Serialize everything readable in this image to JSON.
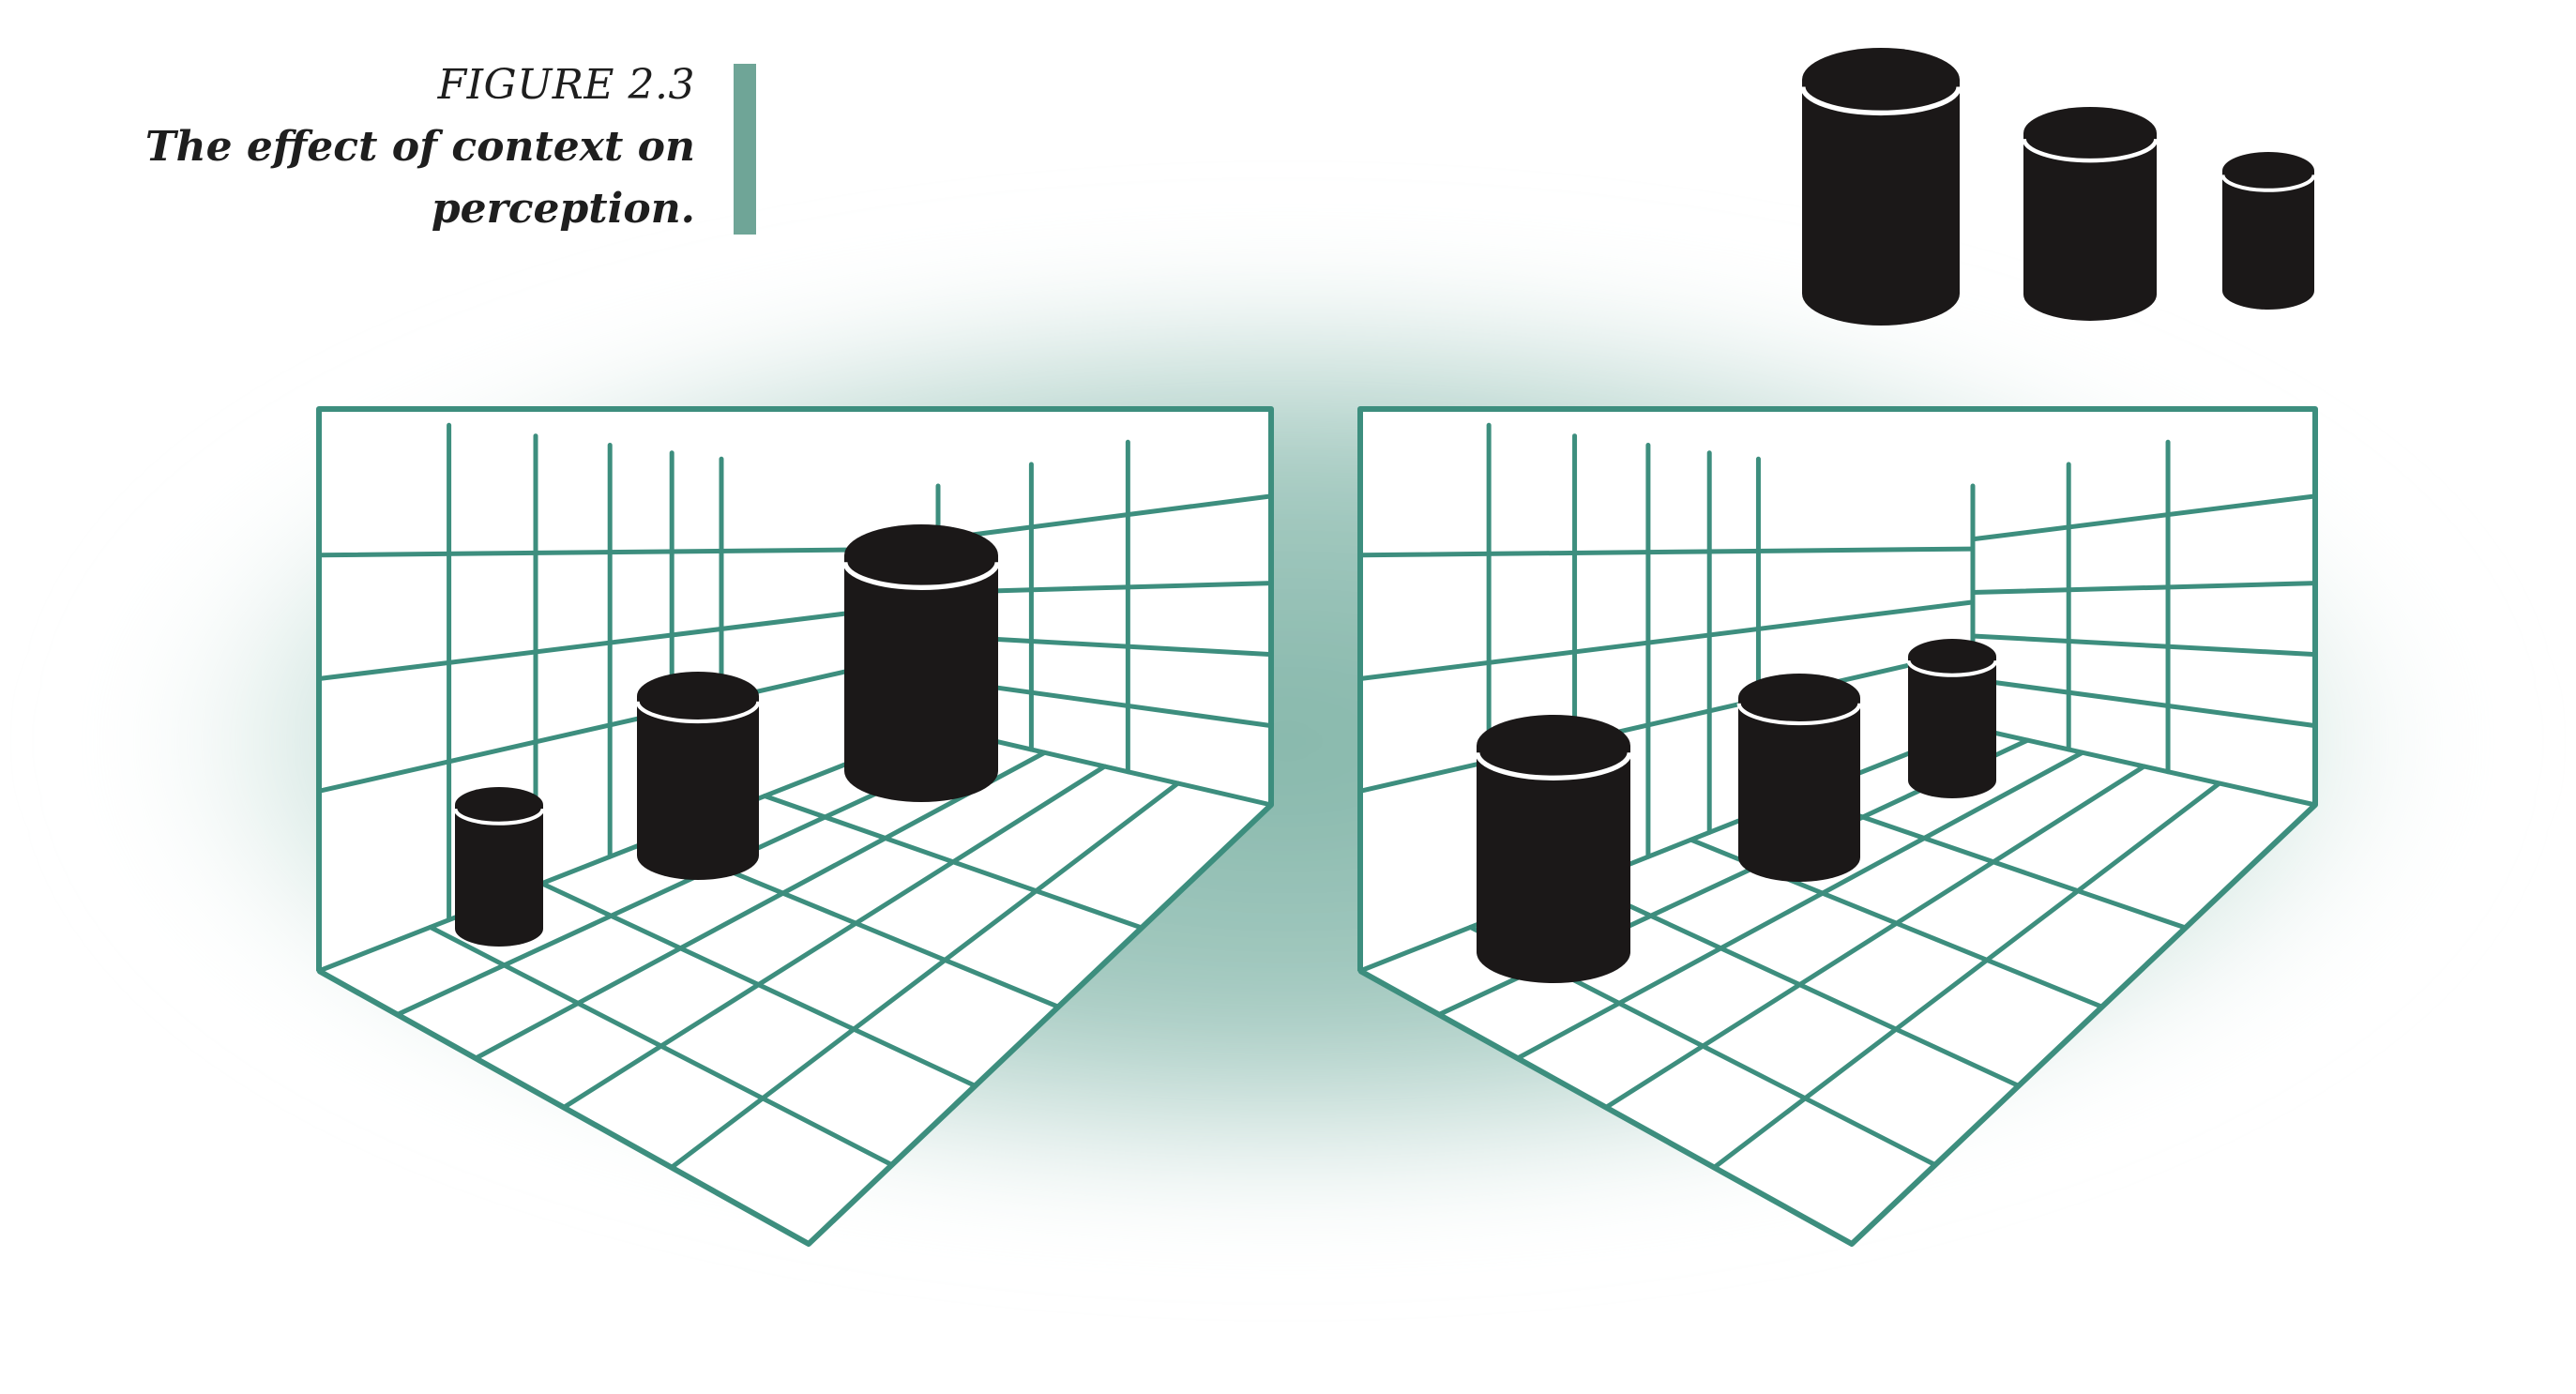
{
  "caption": {
    "label": "FIGURE 2.3",
    "text": "The effect of context on perception."
  },
  "colors": {
    "grid": "#3d8e7e",
    "halo": "#a9cdc4",
    "halo_core": "#7fb3a6",
    "bar": "#6fa597",
    "cylinder": "#1b1818",
    "rim": "#ffffff",
    "room_fill": "#ffffff",
    "text": "#1e1e1e"
  },
  "panels": [
    {
      "name": "left-room",
      "cylinders": [
        "small-near",
        "medium-middle",
        "large-far"
      ]
    },
    {
      "name": "right-room",
      "cylinders": [
        "large-near",
        "medium-middle",
        "small-far"
      ]
    }
  ],
  "reference_cylinders": [
    "large",
    "medium",
    "small"
  ]
}
